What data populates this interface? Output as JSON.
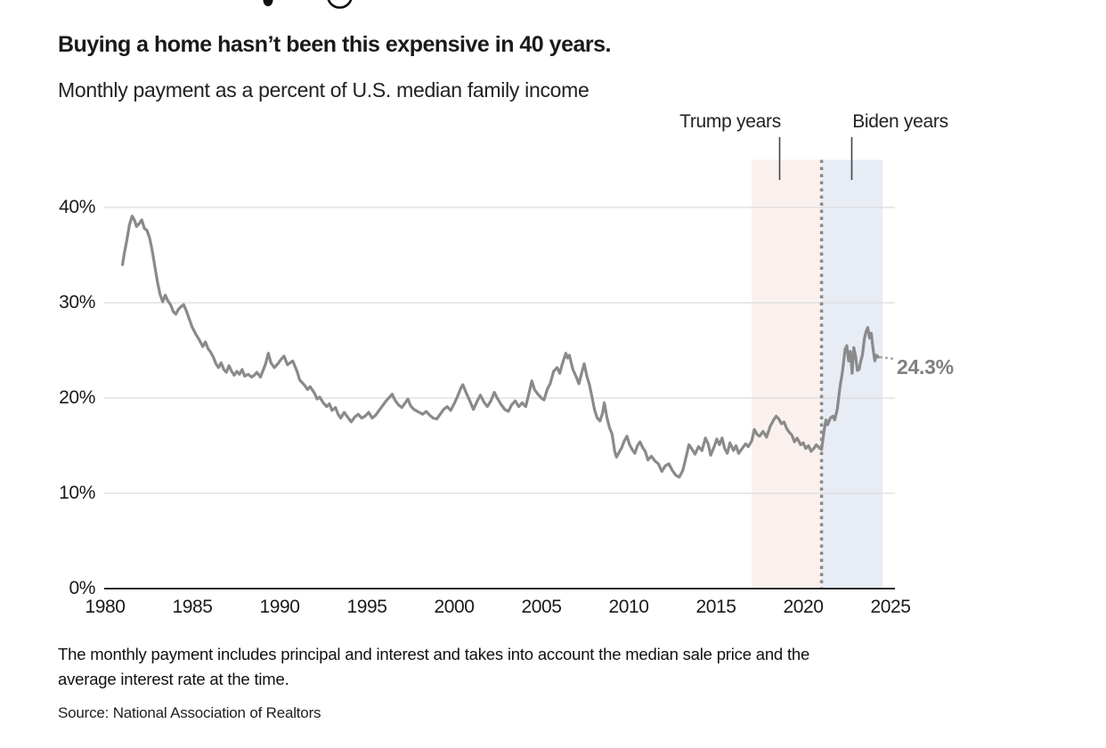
{
  "cropped_headline": {
    "note": "bottom descenders of letters from a larger headline cropped at the top edge",
    "partial_glyphs": "y g"
  },
  "title": "Buying a home hasn’t been this expensive in 40 years.",
  "subtitle": "Monthly payment as a percent of U.S. median family income",
  "annotations": {
    "trump_label": "Trump years",
    "biden_label": "Biden years"
  },
  "footnote": {
    "line1": "The monthly payment includes principal and interest and takes into account the median sale price and the",
    "line2": "average interest rate at the time."
  },
  "source": "Source: National Association of Realtors",
  "colors": {
    "line": "#8a8a8a",
    "trump_region": "#faf1ee",
    "biden_region": "#e7ecf5",
    "divider_dots": "#8a8a8a",
    "gridline": "#dcdcdc",
    "axis": "#2b2b2b",
    "leader_line": "#444444",
    "end_label": "#808080",
    "headline_fragment": "#111111"
  },
  "chart_data": {
    "type": "line",
    "title": "Buying a home hasn’t been this expensive in 40 years.",
    "subtitle": "Monthly payment as a percent of U.S. median family income",
    "xlabel": "",
    "ylabel": "Monthly payment as a percent of U.S. median family income",
    "xlim": [
      1979.95,
      2025.3
    ],
    "ylim": [
      0,
      45
    ],
    "grid": "horizontal",
    "x_ticks": [
      "1980",
      "1985",
      "1990",
      "1995",
      "2000",
      "2005",
      "2010",
      "2015",
      "2020",
      "2025"
    ],
    "x_tick_values": [
      1980,
      1985,
      1990,
      1995,
      2000,
      2005,
      2010,
      2015,
      2020,
      2025
    ],
    "y_ticks": [
      "40%",
      "30%",
      "20%",
      "10%",
      "0%"
    ],
    "y_tick_values": [
      40,
      30,
      20,
      10,
      0
    ],
    "gridline_values": [
      10,
      20,
      30,
      40
    ],
    "regions": [
      {
        "label": "Trump years",
        "start": 2017.05,
        "end": 2021.05,
        "color": "#faf1ee"
      },
      {
        "label": "Biden years",
        "start": 2021.05,
        "end": 2024.55,
        "color": "#e7ecf5"
      }
    ],
    "divider_year": 2021.05,
    "end_label": "24.3%",
    "end_value": 24.3,
    "series": [
      {
        "name": "Monthly payment as a percent of U.S. median family income",
        "color": "#8a8a8a",
        "points": [
          [
            1981.0,
            34.0
          ],
          [
            1981.1,
            35.2
          ],
          [
            1981.25,
            36.6
          ],
          [
            1981.4,
            38.2
          ],
          [
            1981.55,
            39.1
          ],
          [
            1981.7,
            38.6
          ],
          [
            1981.8,
            38.0
          ],
          [
            1981.95,
            38.3
          ],
          [
            1982.1,
            38.7
          ],
          [
            1982.25,
            37.8
          ],
          [
            1982.4,
            37.6
          ],
          [
            1982.55,
            36.8
          ],
          [
            1982.7,
            35.5
          ],
          [
            1982.85,
            33.8
          ],
          [
            1983.0,
            32.2
          ],
          [
            1983.15,
            30.9
          ],
          [
            1983.3,
            30.1
          ],
          [
            1983.45,
            30.8
          ],
          [
            1983.6,
            30.2
          ],
          [
            1983.75,
            29.8
          ],
          [
            1983.9,
            29.1
          ],
          [
            1984.05,
            28.8
          ],
          [
            1984.2,
            29.3
          ],
          [
            1984.35,
            29.6
          ],
          [
            1984.5,
            29.8
          ],
          [
            1984.65,
            29.2
          ],
          [
            1984.8,
            28.4
          ],
          [
            1985.0,
            27.4
          ],
          [
            1985.2,
            26.7
          ],
          [
            1985.4,
            26.1
          ],
          [
            1985.6,
            25.4
          ],
          [
            1985.75,
            25.9
          ],
          [
            1985.9,
            25.2
          ],
          [
            1986.05,
            24.8
          ],
          [
            1986.2,
            24.3
          ],
          [
            1986.35,
            23.6
          ],
          [
            1986.5,
            23.2
          ],
          [
            1986.65,
            23.7
          ],
          [
            1986.8,
            23.0
          ],
          [
            1986.95,
            22.7
          ],
          [
            1987.1,
            23.4
          ],
          [
            1987.25,
            22.8
          ],
          [
            1987.4,
            22.4
          ],
          [
            1987.55,
            22.8
          ],
          [
            1987.7,
            22.5
          ],
          [
            1987.85,
            23.0
          ],
          [
            1988.0,
            22.3
          ],
          [
            1988.2,
            22.5
          ],
          [
            1988.4,
            22.2
          ],
          [
            1988.55,
            22.4
          ],
          [
            1988.7,
            22.7
          ],
          [
            1988.9,
            22.2
          ],
          [
            1989.05,
            22.9
          ],
          [
            1989.2,
            23.6
          ],
          [
            1989.35,
            24.7
          ],
          [
            1989.5,
            23.7
          ],
          [
            1989.7,
            23.2
          ],
          [
            1989.9,
            23.6
          ],
          [
            1990.1,
            24.1
          ],
          [
            1990.25,
            24.4
          ],
          [
            1990.45,
            23.5
          ],
          [
            1990.6,
            23.7
          ],
          [
            1990.75,
            23.9
          ],
          [
            1991.0,
            22.8
          ],
          [
            1991.15,
            21.9
          ],
          [
            1991.3,
            21.6
          ],
          [
            1991.45,
            21.3
          ],
          [
            1991.6,
            20.9
          ],
          [
            1991.75,
            21.2
          ],
          [
            1992.0,
            20.5
          ],
          [
            1992.15,
            19.9
          ],
          [
            1992.3,
            20.1
          ],
          [
            1992.5,
            19.5
          ],
          [
            1992.7,
            19.1
          ],
          [
            1992.85,
            19.4
          ],
          [
            1993.0,
            18.7
          ],
          [
            1993.2,
            19.0
          ],
          [
            1993.35,
            18.3
          ],
          [
            1993.5,
            17.9
          ],
          [
            1993.7,
            18.5
          ],
          [
            1993.9,
            18.0
          ],
          [
            1994.1,
            17.5
          ],
          [
            1994.3,
            18.0
          ],
          [
            1994.5,
            18.3
          ],
          [
            1994.7,
            17.9
          ],
          [
            1994.9,
            18.1
          ],
          [
            1995.1,
            18.5
          ],
          [
            1995.3,
            17.9
          ],
          [
            1995.5,
            18.2
          ],
          [
            1995.7,
            18.7
          ],
          [
            1995.9,
            19.2
          ],
          [
            1996.1,
            19.7
          ],
          [
            1996.3,
            20.1
          ],
          [
            1996.45,
            20.4
          ],
          [
            1996.6,
            19.8
          ],
          [
            1996.8,
            19.3
          ],
          [
            1997.0,
            19.0
          ],
          [
            1997.2,
            19.5
          ],
          [
            1997.35,
            19.9
          ],
          [
            1997.5,
            19.2
          ],
          [
            1997.7,
            18.8
          ],
          [
            1998.0,
            18.5
          ],
          [
            1998.2,
            18.3
          ],
          [
            1998.4,
            18.6
          ],
          [
            1998.6,
            18.2
          ],
          [
            1998.8,
            17.9
          ],
          [
            1999.0,
            17.8
          ],
          [
            1999.2,
            18.3
          ],
          [
            1999.4,
            18.8
          ],
          [
            1999.6,
            19.1
          ],
          [
            1999.8,
            18.7
          ],
          [
            2000.0,
            19.4
          ],
          [
            2000.2,
            20.2
          ],
          [
            2000.4,
            21.1
          ],
          [
            2000.5,
            21.4
          ],
          [
            2000.7,
            20.5
          ],
          [
            2000.9,
            19.7
          ],
          [
            2001.1,
            18.8
          ],
          [
            2001.3,
            19.6
          ],
          [
            2001.5,
            20.3
          ],
          [
            2001.7,
            19.6
          ],
          [
            2001.9,
            19.1
          ],
          [
            2002.1,
            19.7
          ],
          [
            2002.3,
            20.6
          ],
          [
            2002.5,
            19.9
          ],
          [
            2002.7,
            19.3
          ],
          [
            2002.9,
            18.8
          ],
          [
            2003.1,
            18.6
          ],
          [
            2003.3,
            19.3
          ],
          [
            2003.5,
            19.7
          ],
          [
            2003.7,
            19.1
          ],
          [
            2003.9,
            19.5
          ],
          [
            2004.1,
            19.1
          ],
          [
            2004.3,
            20.6
          ],
          [
            2004.45,
            21.8
          ],
          [
            2004.6,
            20.9
          ],
          [
            2004.8,
            20.4
          ],
          [
            2005.0,
            20.0
          ],
          [
            2005.15,
            19.8
          ],
          [
            2005.35,
            21.0
          ],
          [
            2005.5,
            21.5
          ],
          [
            2005.7,
            22.8
          ],
          [
            2005.9,
            23.2
          ],
          [
            2006.05,
            22.6
          ],
          [
            2006.2,
            23.6
          ],
          [
            2006.4,
            24.7
          ],
          [
            2006.5,
            24.2
          ],
          [
            2006.6,
            24.5
          ],
          [
            2006.8,
            23.0
          ],
          [
            2007.0,
            22.2
          ],
          [
            2007.15,
            21.5
          ],
          [
            2007.3,
            22.6
          ],
          [
            2007.45,
            23.6
          ],
          [
            2007.6,
            22.3
          ],
          [
            2007.75,
            21.4
          ],
          [
            2007.9,
            20.1
          ],
          [
            2008.05,
            18.7
          ],
          [
            2008.2,
            17.9
          ],
          [
            2008.35,
            17.6
          ],
          [
            2008.5,
            18.4
          ],
          [
            2008.6,
            19.5
          ],
          [
            2008.75,
            18.0
          ],
          [
            2008.9,
            16.9
          ],
          [
            2009.05,
            16.2
          ],
          [
            2009.2,
            14.4
          ],
          [
            2009.3,
            13.8
          ],
          [
            2009.45,
            14.3
          ],
          [
            2009.6,
            14.8
          ],
          [
            2009.75,
            15.5
          ],
          [
            2009.9,
            16.0
          ],
          [
            2010.05,
            15.1
          ],
          [
            2010.2,
            14.6
          ],
          [
            2010.35,
            14.2
          ],
          [
            2010.5,
            15.0
          ],
          [
            2010.65,
            15.4
          ],
          [
            2010.8,
            14.8
          ],
          [
            2010.95,
            14.4
          ],
          [
            2011.1,
            13.5
          ],
          [
            2011.3,
            13.9
          ],
          [
            2011.5,
            13.4
          ],
          [
            2011.7,
            13.1
          ],
          [
            2011.9,
            12.3
          ],
          [
            2012.1,
            12.9
          ],
          [
            2012.3,
            13.1
          ],
          [
            2012.5,
            12.4
          ],
          [
            2012.7,
            11.9
          ],
          [
            2012.9,
            11.7
          ],
          [
            2013.1,
            12.4
          ],
          [
            2013.3,
            13.9
          ],
          [
            2013.45,
            15.1
          ],
          [
            2013.6,
            14.7
          ],
          [
            2013.8,
            14.1
          ],
          [
            2014.0,
            14.9
          ],
          [
            2014.2,
            14.5
          ],
          [
            2014.4,
            15.8
          ],
          [
            2014.55,
            15.2
          ],
          [
            2014.7,
            14.0
          ],
          [
            2014.9,
            14.9
          ],
          [
            2015.05,
            15.7
          ],
          [
            2015.2,
            15.1
          ],
          [
            2015.35,
            15.8
          ],
          [
            2015.5,
            14.7
          ],
          [
            2015.65,
            14.2
          ],
          [
            2015.8,
            15.3
          ],
          [
            2016.0,
            14.5
          ],
          [
            2016.15,
            15.0
          ],
          [
            2016.3,
            14.2
          ],
          [
            2016.5,
            14.7
          ],
          [
            2016.7,
            15.2
          ],
          [
            2016.85,
            14.9
          ],
          [
            2017.05,
            15.5
          ],
          [
            2017.2,
            16.7
          ],
          [
            2017.35,
            16.2
          ],
          [
            2017.5,
            16.0
          ],
          [
            2017.7,
            16.5
          ],
          [
            2017.9,
            15.9
          ],
          [
            2018.1,
            17.0
          ],
          [
            2018.3,
            17.7
          ],
          [
            2018.45,
            18.1
          ],
          [
            2018.6,
            17.8
          ],
          [
            2018.75,
            17.3
          ],
          [
            2018.9,
            17.5
          ],
          [
            2019.05,
            16.8
          ],
          [
            2019.2,
            16.4
          ],
          [
            2019.35,
            16.1
          ],
          [
            2019.5,
            15.4
          ],
          [
            2019.65,
            15.8
          ],
          [
            2019.85,
            15.1
          ],
          [
            2020.0,
            15.3
          ],
          [
            2020.15,
            14.7
          ],
          [
            2020.3,
            15.0
          ],
          [
            2020.45,
            14.4
          ],
          [
            2020.6,
            14.7
          ],
          [
            2020.75,
            15.1
          ],
          [
            2020.9,
            14.8
          ],
          [
            2021.05,
            14.6
          ],
          [
            2021.2,
            16.6
          ],
          [
            2021.3,
            17.7
          ],
          [
            2021.4,
            17.2
          ],
          [
            2021.55,
            17.9
          ],
          [
            2021.7,
            18.1
          ],
          [
            2021.8,
            17.7
          ],
          [
            2021.95,
            18.8
          ],
          [
            2022.1,
            21.1
          ],
          [
            2022.25,
            22.8
          ],
          [
            2022.4,
            25.1
          ],
          [
            2022.5,
            25.5
          ],
          [
            2022.6,
            23.9
          ],
          [
            2022.7,
            24.9
          ],
          [
            2022.8,
            22.6
          ],
          [
            2022.9,
            25.3
          ],
          [
            2023.0,
            24.4
          ],
          [
            2023.1,
            22.9
          ],
          [
            2023.2,
            23.0
          ],
          [
            2023.3,
            23.9
          ],
          [
            2023.4,
            24.6
          ],
          [
            2023.5,
            26.2
          ],
          [
            2023.6,
            27.0
          ],
          [
            2023.7,
            27.4
          ],
          [
            2023.8,
            26.3
          ],
          [
            2023.9,
            26.8
          ],
          [
            2024.0,
            25.2
          ],
          [
            2024.1,
            23.9
          ],
          [
            2024.2,
            24.5
          ],
          [
            2024.3,
            24.3
          ]
        ]
      }
    ]
  }
}
